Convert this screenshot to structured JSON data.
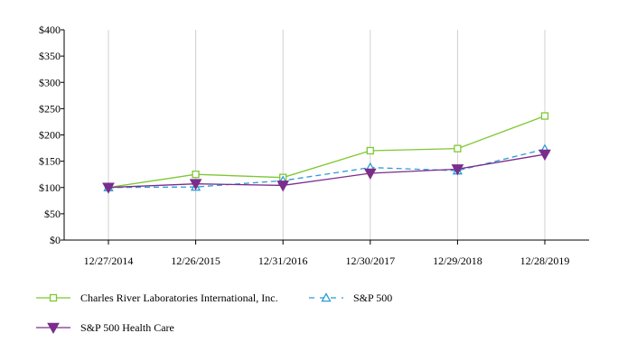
{
  "chart_data": {
    "type": "line",
    "categories": [
      "12/27/2014",
      "12/26/2015",
      "12/31/2016",
      "12/30/2017",
      "12/29/2018",
      "12/28/2019"
    ],
    "ylim": [
      0,
      400
    ],
    "yticks": [
      "$0",
      "$50",
      "$100",
      "$150",
      "$200",
      "$250",
      "$300",
      "$350",
      "$400"
    ],
    "grid": "vertical",
    "legend_position": "bottom",
    "series": [
      {
        "name": "Charles River Laboratories International, Inc.",
        "values": [
          100,
          125,
          119,
          170,
          174,
          236
        ],
        "color": "#7dc832",
        "marker": "square",
        "line": "solid"
      },
      {
        "name": "S&P 500",
        "values": [
          100,
          101,
          113,
          138,
          132,
          173
        ],
        "color": "#2b9bd6",
        "marker": "triangle-up",
        "line": "dashed"
      },
      {
        "name": "S&P 500 Health Care",
        "values": [
          100,
          107,
          104,
          127,
          135,
          163
        ],
        "color": "#7b2d8b",
        "marker": "triangle-down",
        "line": "solid"
      }
    ]
  }
}
